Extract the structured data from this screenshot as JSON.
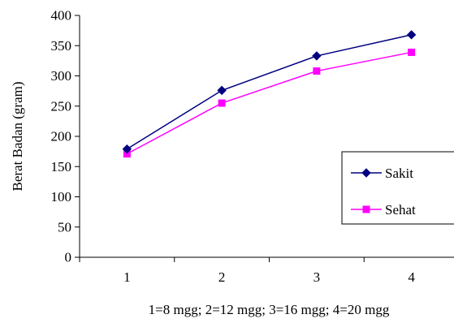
{
  "chart_data": {
    "type": "line",
    "title": "",
    "xlabel": "1=8 mgg; 2=12 mgg; 3=16 mgg; 4=20 mgg",
    "ylabel": "Berat Badan (gram)",
    "categories": [
      "1",
      "2",
      "3",
      "4"
    ],
    "ylim": [
      0,
      400
    ],
    "yticks": [
      "0",
      "50",
      "100",
      "150",
      "200",
      "250",
      "300",
      "350",
      "400"
    ],
    "grid": false,
    "legend_position": "right",
    "series": [
      {
        "name": "Sakit",
        "values": [
          179,
          276,
          333,
          368
        ],
        "color": "#000080",
        "marker": "diamond"
      },
      {
        "name": "Sehat",
        "values": [
          171,
          255,
          308,
          339
        ],
        "color": "#ff00ff",
        "marker": "square"
      }
    ]
  }
}
